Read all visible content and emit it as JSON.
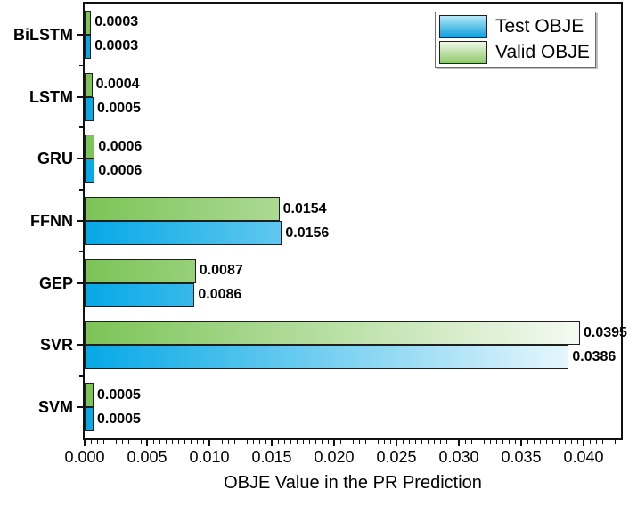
{
  "chart_data": {
    "type": "bar",
    "orientation": "horizontal",
    "title": "",
    "xlabel": "OBJE Value in the PR Prediction",
    "ylabel": "",
    "categories": [
      "BiLSTM",
      "LSTM",
      "GRU",
      "FFNN",
      "GEP",
      "SVR",
      "SVM"
    ],
    "series": [
      {
        "name": "Valid OBJE",
        "position_in_pair": "top",
        "bar_color_left": "#7cc457",
        "bar_color_right": "#ffffff",
        "values": [
          0.0003,
          0.0004,
          0.0006,
          0.0154,
          0.0087,
          0.0395,
          0.0005
        ],
        "labels": [
          "0.0003",
          "0.0004",
          "0.0006",
          "0.0154",
          "0.0087",
          "0.0395",
          "0.0005"
        ]
      },
      {
        "name": "Test OBJE",
        "position_in_pair": "bottom",
        "bar_color_left": "#05a8e6",
        "bar_color_right": "#ffffff",
        "values": [
          0.0003,
          0.0005,
          0.0006,
          0.0156,
          0.0086,
          0.0386,
          0.0005
        ],
        "labels": [
          "0.0003",
          "0.0005",
          "0.0006",
          "0.0156",
          "0.0086",
          "0.0386",
          "0.0005"
        ]
      }
    ],
    "xlim": [
      0,
      0.043
    ],
    "x_major_step": 0.005,
    "x_minor_step": 0.0005,
    "x_tick_labels": [
      "0.000",
      "0.005",
      "0.010",
      "0.015",
      "0.020",
      "0.025",
      "0.030",
      "0.035",
      "0.040"
    ],
    "grid": false,
    "legend": {
      "position": "top-right",
      "items": [
        {
          "label": "Test OBJE",
          "swatch_gradient_top": "#b5e9f9",
          "swatch_gradient_bottom": "#0b9edd"
        },
        {
          "label": "Valid OBJE",
          "swatch_gradient_top": "#eff8e6",
          "swatch_gradient_bottom": "#8ac966"
        }
      ]
    },
    "bar_border_color": "#1f1f1f",
    "axis_color": "#111111",
    "text_color": "#000000"
  }
}
